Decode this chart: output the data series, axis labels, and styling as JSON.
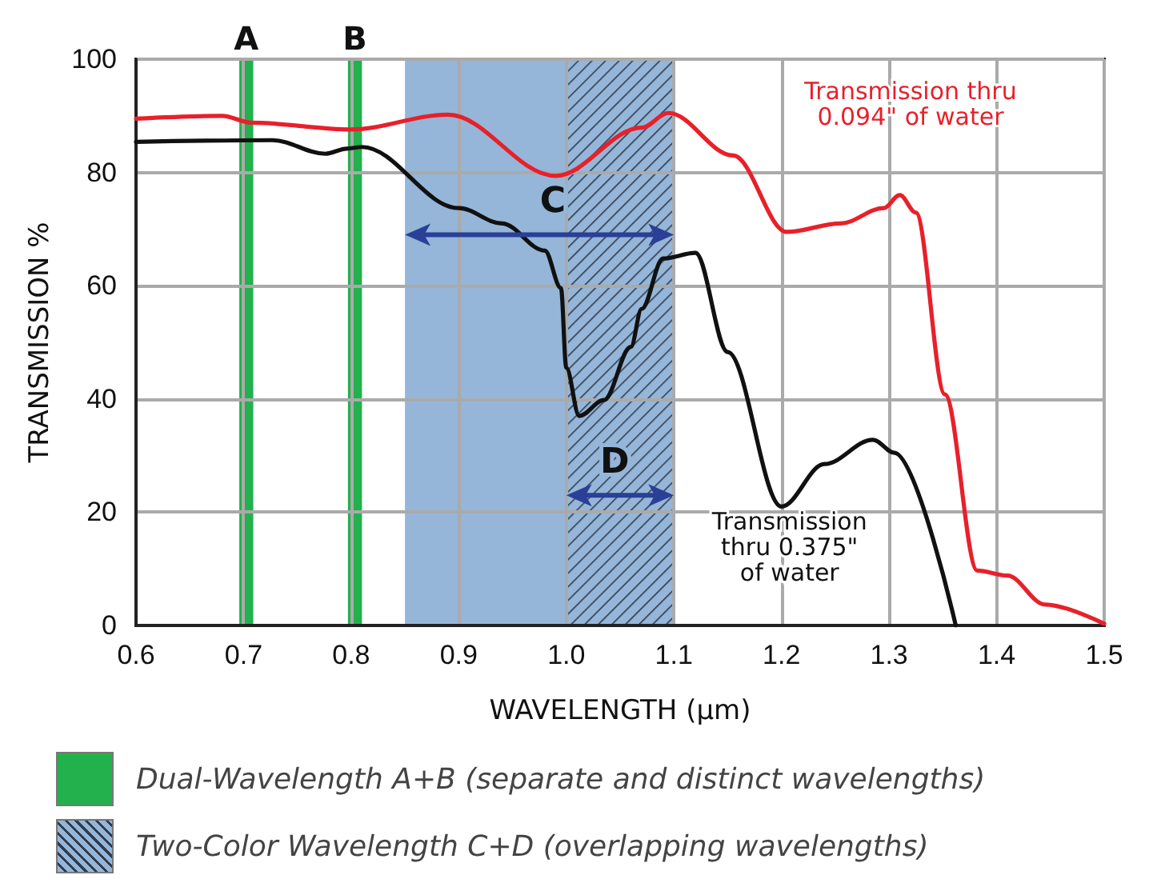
{
  "chart_data": {
    "type": "line",
    "xlabel": "WAVELENGTH (μm)",
    "ylabel": "TRANSMISSION %",
    "series": [
      {
        "name": "Transmission thru 0.094\" of water",
        "color": "#e8202a",
        "x": [
          0.6,
          0.68,
          0.707,
          0.8,
          0.89,
          0.99,
          1.07,
          1.095,
          1.155,
          1.205,
          1.255,
          1.295,
          1.31,
          1.325,
          1.352,
          1.382,
          1.41,
          1.445,
          1.5
        ],
        "values": [
          89.5,
          90,
          88.8,
          87.6,
          90.2,
          79.4,
          87.9,
          90.5,
          83,
          69.5,
          71,
          73.7,
          76,
          72.9,
          40.8,
          9.7,
          8.8,
          3.7,
          0.3
        ]
      },
      {
        "name": "Transmission thru 0.375\" of water",
        "color": "#111111",
        "x": [
          0.6,
          0.727,
          0.776,
          0.796,
          0.81,
          0.9,
          0.94,
          0.98,
          0.995,
          1.0,
          1.012,
          1.035,
          1.06,
          1.07,
          1.09,
          1.12,
          1.15,
          1.2,
          1.24,
          1.285,
          1.305,
          1.362
        ],
        "values": [
          85.4,
          85.7,
          83.3,
          84.2,
          84.5,
          73.7,
          71,
          66.2,
          59.6,
          45.5,
          37,
          39.8,
          49.2,
          55.9,
          64.8,
          65.8,
          48.3,
          21,
          28.5,
          32.8,
          30.5,
          0
        ]
      }
    ],
    "bands": [
      {
        "axis": "x",
        "from": 0.696,
        "to": 0.709,
        "label": "A",
        "color": "#22b14c"
      },
      {
        "axis": "x",
        "from": 0.797,
        "to": 0.81,
        "label": "B",
        "color": "#22b14c"
      },
      {
        "axis": "x",
        "from": 0.85,
        "to": 1.1,
        "label": "C",
        "color": "#95b6d8"
      },
      {
        "axis": "x",
        "from": 1.0,
        "to": 1.1,
        "label": "D",
        "color": "#2e3b4e"
      }
    ],
    "annotations": [
      "Dual-Wavelength A+B (separate and distinct wavelengths)",
      "Two-Color Wavelength C+D (overlapping wavelengths)"
    ],
    "xlim": [
      0.6,
      1.5
    ],
    "xticks": [
      0.6,
      0.7,
      0.8,
      0.9,
      {
        "value": 1,
        "label": "1.0"
      },
      1.1,
      1.2,
      1.3,
      1.4,
      1.5
    ],
    "ylim": [
      0,
      100
    ],
    "yticks": [
      0,
      20,
      40,
      60,
      80,
      100
    ],
    "grid": true,
    "marker": "none",
    "line_style": "solid"
  }
}
